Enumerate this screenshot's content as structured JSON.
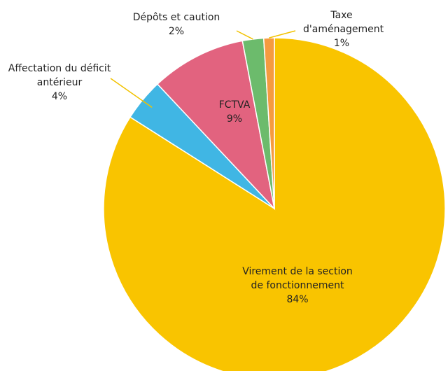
{
  "chart_data": {
    "type": "pie",
    "categories": [
      "Virement de la section de fonctionnement",
      "Affectation du déficit antérieur",
      "FCTVA",
      "Dépôts et caution",
      "Taxe d'aménagement"
    ],
    "values": [
      84,
      4,
      9,
      2,
      1
    ],
    "value_labels": [
      "84%",
      "4%",
      "9%",
      "2%",
      "1%"
    ],
    "colors": [
      "#f9c400",
      "#40b6e4",
      "#e2637f",
      "#6cbb6c",
      "#f59b40"
    ]
  }
}
